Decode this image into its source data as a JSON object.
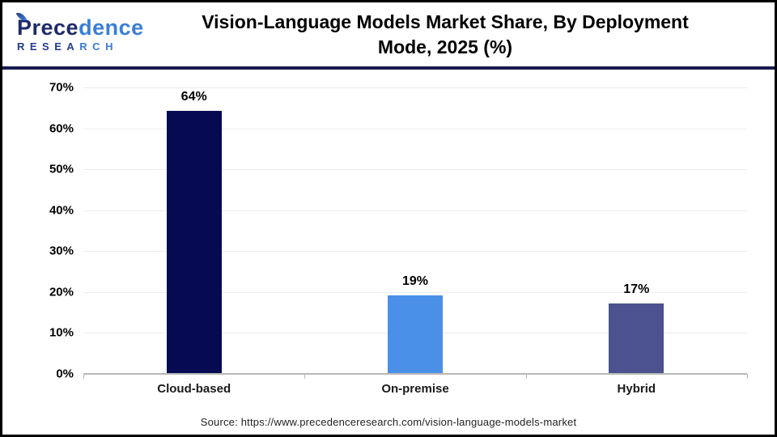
{
  "header": {
    "logo": {
      "script_part1": "Prece",
      "script_part2": "dence",
      "caps_part1": "RESEA",
      "caps_part2": "RCH"
    },
    "title_line1": "Vision-Language Models Market Share, By Deployment",
    "title_line2": "Mode, 2025 (%)"
  },
  "footer": {
    "source": "Source: https://www.precedenceresearch.com/vision-language-models-market"
  },
  "colors": {
    "header_rule": "#161c4e",
    "grid": "#ececec",
    "axis": "#b8b8b8",
    "bar_cloud": "#050a52",
    "bar_onpremise": "#4a90e9",
    "bar_hybrid": "#4c5190"
  },
  "chart_data": {
    "type": "bar",
    "title": "Vision-Language Models Market Share, By Deployment Mode, 2025 (%)",
    "categories": [
      "Cloud-based",
      "On-premise",
      "Hybrid"
    ],
    "values": [
      64,
      19,
      17
    ],
    "value_labels": [
      "64%",
      "19%",
      "17%"
    ],
    "bar_colors": [
      "#050a52",
      "#4a90e9",
      "#4c5190"
    ],
    "xlabel": "",
    "ylabel": "",
    "ylim": [
      0,
      70
    ],
    "ytick_step": 10,
    "yticks": [
      "0%",
      "10%",
      "20%",
      "30%",
      "40%",
      "50%",
      "60%",
      "70%"
    ],
    "grid": true,
    "legend_position": "none"
  }
}
